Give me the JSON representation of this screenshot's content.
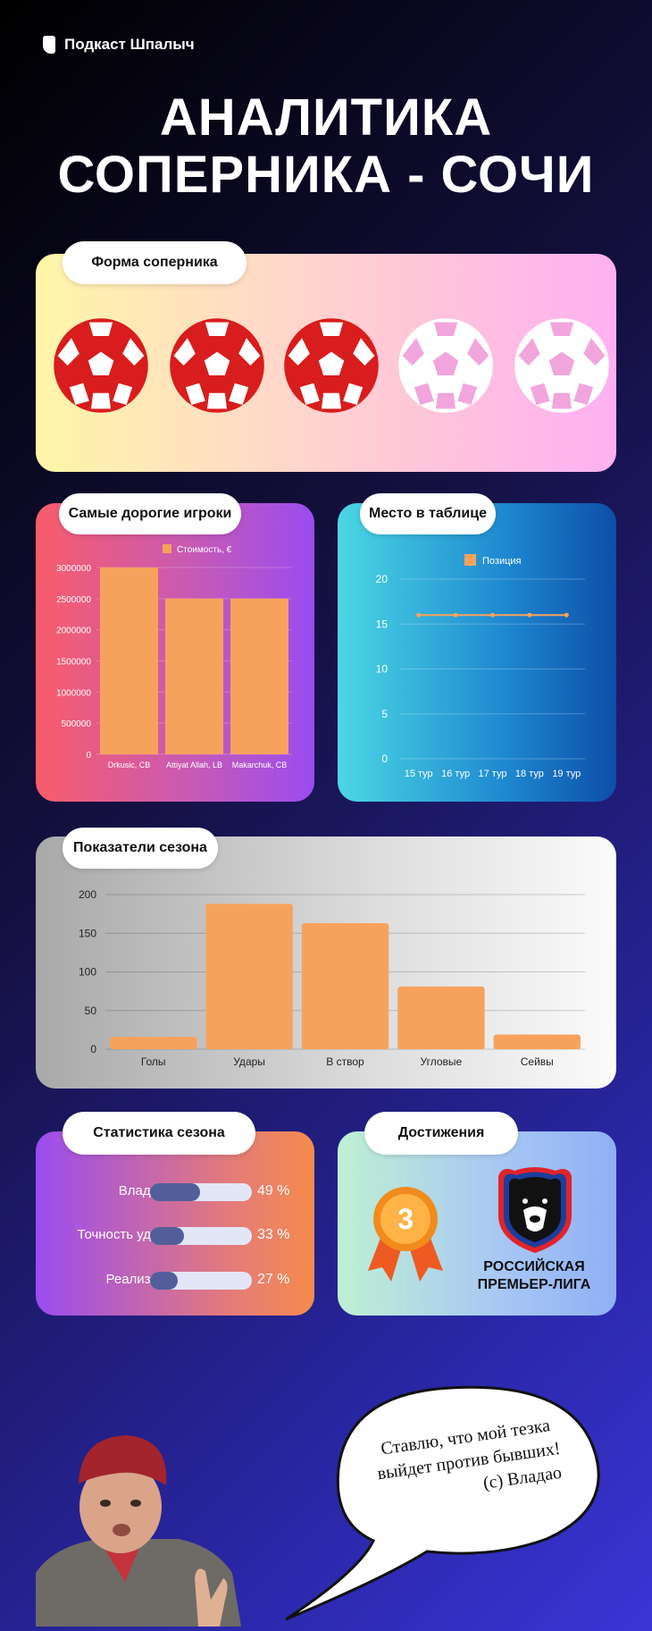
{
  "brand": {
    "name": "Подкаст Шпалыч"
  },
  "title": {
    "line1": "АНАЛИТИКА",
    "line2": "СОПЕРНИКА - СОЧИ"
  },
  "form": {
    "label": "Форма соперника",
    "results": [
      "loss",
      "loss",
      "loss",
      "win",
      "win"
    ],
    "colors": {
      "loss": "#d91c1c",
      "win": "#ffffff",
      "loss_panel": "#ffffff",
      "win_panel": "#f2a5dd"
    }
  },
  "achievements": {
    "label": "Достижения",
    "medal_number": "3",
    "league_line1": "РОССИЙСКАЯ",
    "league_line2": "ПРЕМЬЕР-ЛИГА"
  },
  "season_stats": {
    "label": "Статистика сезона",
    "items": [
      {
        "name": "Владение",
        "value": 49,
        "display": "49 %"
      },
      {
        "name": "Точность ударов",
        "value": 33,
        "display": "33 %"
      },
      {
        "name": "Реализация",
        "value": 27,
        "display": "27 %"
      }
    ]
  },
  "quote": {
    "line1": "Ставлю, что мой тезка",
    "line2": "выйдет против бывших!",
    "signature": "(с) Владао"
  },
  "chart_data": [
    {
      "id": "valuable",
      "type": "bar",
      "title": "Самые дорогие игроки",
      "legend": "Стоимость, €",
      "categories": [
        "Drkusic, CB",
        "Attiyat Allah, LB",
        "Makarchuk, CB"
      ],
      "values": [
        3000000,
        2500000,
        2500000
      ],
      "ylim": [
        0,
        3000000
      ],
      "yticks": [
        "0",
        "500000",
        "1000000",
        "1500000",
        "2000000",
        "2500000",
        "3000000"
      ],
      "color": "#f7a25c"
    },
    {
      "id": "position",
      "type": "line",
      "title": "Место в таблице",
      "legend": "Позиция",
      "categories": [
        "15 тур",
        "16 тур",
        "17 тур",
        "18 тур",
        "19 тур"
      ],
      "values": [
        16,
        16,
        16,
        16,
        16
      ],
      "ylim": [
        0,
        20
      ],
      "yticks": [
        "0",
        "5",
        "10",
        "15",
        "20"
      ],
      "color": "#f7a25c"
    },
    {
      "id": "season",
      "type": "bar",
      "title": "Показатели сезона",
      "categories": [
        "Голы",
        "Удары",
        "В створ",
        "Угловые",
        "Сейвы"
      ],
      "values": [
        16,
        188,
        163,
        81,
        19
      ],
      "ylim": [
        0,
        200
      ],
      "yticks": [
        "0",
        "50",
        "100",
        "150",
        "200"
      ],
      "color": "#f7a25c"
    }
  ]
}
